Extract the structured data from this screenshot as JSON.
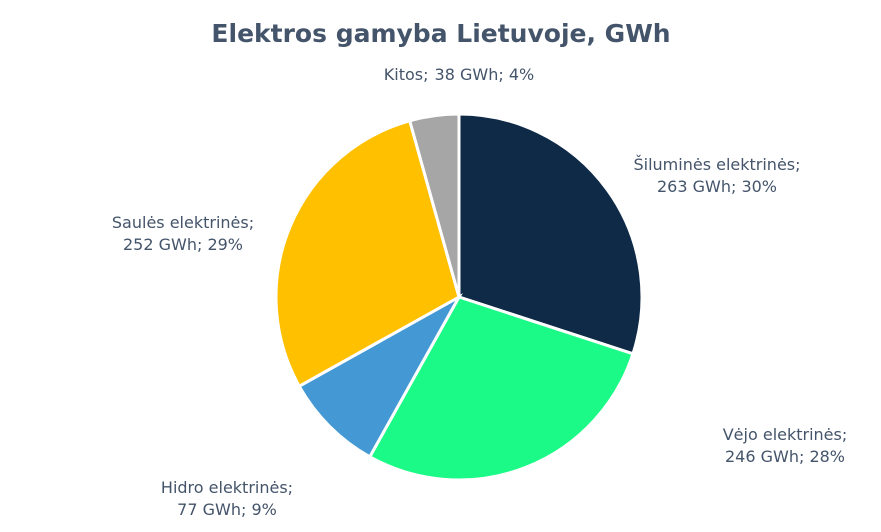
{
  "chart_data": {
    "type": "pie",
    "title": "Elektros gamyba Lietuvoje, GWh",
    "categories": [
      "Šiluminės elektrinės;",
      "Vėjo elektrinės;",
      "Hidro elektrinės;",
      "Saulės elektrinės;",
      "Kitos;"
    ],
    "values": [
      263,
      246,
      77,
      252,
      38
    ],
    "value_labels": [
      "263 GWh; 30%",
      "246 GWh; 28%",
      "77 GWh; 9%",
      "252 GWh; 29%",
      "38 GWh; 4%"
    ],
    "colors": [
      "#0e2a47",
      "#1bfa86",
      "#4499d4",
      "#ffc000",
      "#a6a6a6"
    ]
  }
}
